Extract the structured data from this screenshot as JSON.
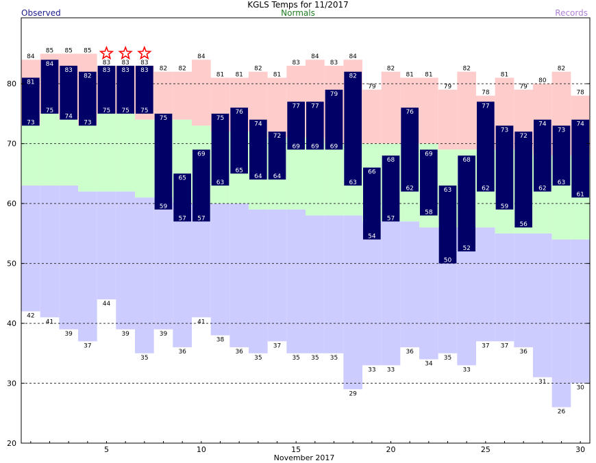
{
  "header": {
    "title": "KGLS Temps for 11/2017",
    "observed_label": "Observed",
    "normals_label": "Normals",
    "records_label": "Records"
  },
  "colors": {
    "observed_bar": "#000066",
    "normal_band": "#ccffcc",
    "record_high_band": "#ffcccc",
    "record_low_band": "#ccccff",
    "star": "#ff0000"
  },
  "chart_data": {
    "type": "bar",
    "title": "KGLS Temps for 11/2017",
    "xlabel": "November 2017",
    "ylabel": "",
    "xlim": [
      1,
      30
    ],
    "ylim": [
      20,
      91
    ],
    "x_ticks": [
      5,
      10,
      15,
      20,
      25,
      30
    ],
    "y_ticks": [
      20,
      30,
      40,
      50,
      60,
      70,
      80
    ],
    "grid": "horizontal dashed",
    "days": [
      1,
      2,
      3,
      4,
      5,
      6,
      7,
      8,
      9,
      10,
      11,
      12,
      13,
      14,
      15,
      16,
      17,
      18,
      19,
      20,
      21,
      22,
      23,
      24,
      25,
      26,
      27,
      28,
      29,
      30
    ],
    "observed_high": [
      81,
      84,
      83,
      82,
      83,
      83,
      83,
      75,
      65,
      69,
      75,
      76,
      74,
      72,
      77,
      77,
      79,
      82,
      66,
      68,
      76,
      69,
      63,
      68,
      77,
      73,
      72,
      74,
      73,
      74
    ],
    "observed_low": [
      73,
      75,
      74,
      73,
      75,
      75,
      75,
      59,
      57,
      57,
      63,
      65,
      64,
      64,
      69,
      69,
      69,
      63,
      54,
      57,
      62,
      58,
      50,
      52,
      62,
      59,
      56,
      62,
      63,
      61
    ],
    "normal_high": [
      73,
      75,
      74,
      73,
      75,
      75,
      74,
      74,
      74,
      73,
      72,
      72,
      72,
      71,
      71,
      71,
      70,
      70,
      70,
      70,
      70,
      70,
      69,
      69,
      69,
      69,
      69,
      68,
      68,
      68
    ],
    "normal_low": [
      63,
      63,
      63,
      62,
      62,
      62,
      61,
      61,
      60,
      60,
      60,
      60,
      59,
      59,
      59,
      58,
      58,
      58,
      57,
      57,
      57,
      56,
      56,
      56,
      56,
      55,
      55,
      55,
      54,
      54
    ],
    "record_high": [
      84,
      85,
      85,
      85,
      83,
      83,
      83,
      82,
      82,
      84,
      81,
      81,
      82,
      81,
      83,
      84,
      83,
      84,
      79,
      82,
      81,
      81,
      79,
      82,
      78,
      81,
      79,
      80,
      82,
      78
    ],
    "record_low": [
      42,
      41,
      39,
      37,
      44,
      39,
      35,
      39,
      36,
      41,
      38,
      36,
      35,
      37,
      35,
      35,
      35,
      29,
      33,
      33,
      36,
      34,
      35,
      33,
      37,
      37,
      36,
      31,
      26,
      30
    ],
    "record_set_days": [
      5,
      6,
      7
    ]
  }
}
